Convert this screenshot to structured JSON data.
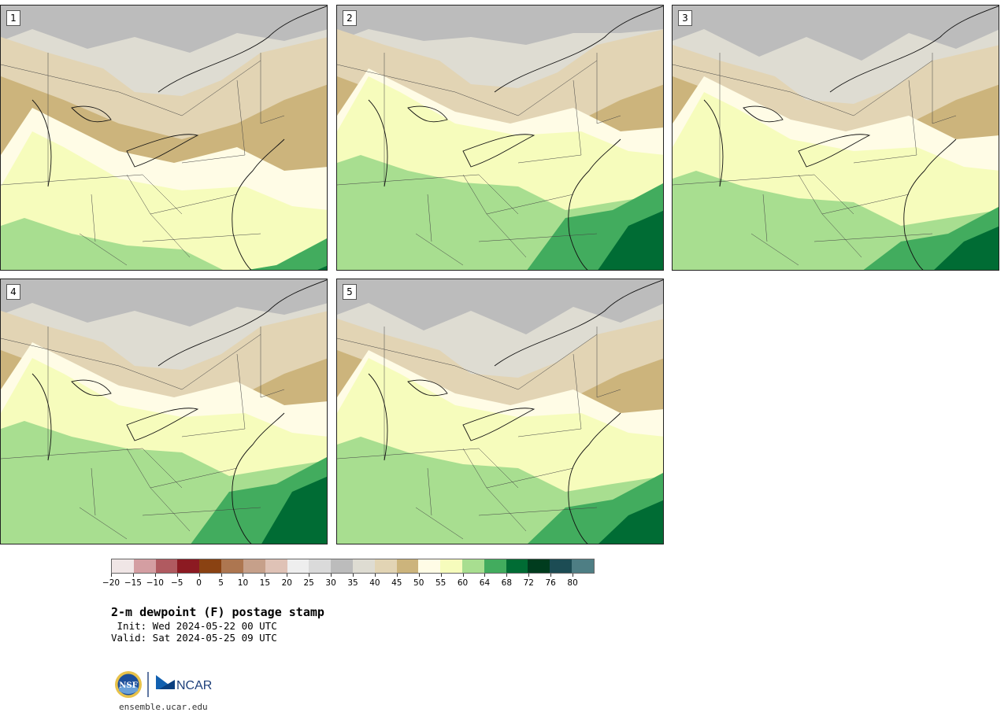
{
  "panels": [
    {
      "label": "1",
      "variant": 0
    },
    {
      "label": "2",
      "variant": 1
    },
    {
      "label": "3",
      "variant": 2
    },
    {
      "label": "4",
      "variant": 3
    },
    {
      "label": "5",
      "variant": 4
    }
  ],
  "colorbar": {
    "colors": [
      "#f0e6e6",
      "#d49ea2",
      "#b05a60",
      "#8c1a22",
      "#8a4212",
      "#ad7650",
      "#c6a08a",
      "#dfc2b6",
      "#eeeeee",
      "#dadada",
      "#bcbcbc",
      "#dedcd2",
      "#e2d4b4",
      "#ccb47c",
      "#fffce6",
      "#f6fcbc",
      "#a8de90",
      "#42ac5e",
      "#006c34",
      "#003c1e",
      "#1c4c54",
      "#4e7e84"
    ],
    "tick_labels": [
      "−20",
      "−15",
      "−10",
      "−5",
      "0",
      "5",
      "10",
      "15",
      "20",
      "25",
      "30",
      "35",
      "40",
      "45",
      "50",
      "55",
      "60",
      "64",
      "68",
      "72",
      "76",
      "80"
    ]
  },
  "title": "2-m dewpoint (F) postage stamp",
  "init_line": " Init: Wed 2024-05-22 00 UTC",
  "valid_line": "Valid: Sat 2024-05-25 09 UTC",
  "logo": {
    "nsf": "NSF",
    "ncar": "NCAR"
  },
  "url": "ensemble.ucar.edu"
}
